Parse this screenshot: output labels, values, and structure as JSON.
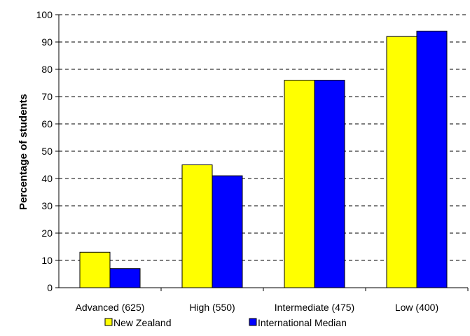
{
  "chart_data": {
    "type": "bar",
    "categories": [
      "Advanced (625)",
      "High (550)",
      "Intermediate (475)",
      "Low (400)"
    ],
    "series": [
      {
        "name": "New Zealand",
        "values": [
          13,
          45,
          76,
          92
        ],
        "color": "#ffff00"
      },
      {
        "name": "International Median",
        "values": [
          7,
          41,
          76,
          94
        ],
        "color": "#0000ff"
      }
    ],
    "ylabel": "Percentage of students",
    "xlabel": "",
    "ylim": [
      0,
      100
    ],
    "yticks": [
      "0",
      "10",
      "20",
      "30",
      "40",
      "50",
      "60",
      "70",
      "80",
      "90",
      "100"
    ],
    "grid": true,
    "legend_position": "bottom"
  }
}
